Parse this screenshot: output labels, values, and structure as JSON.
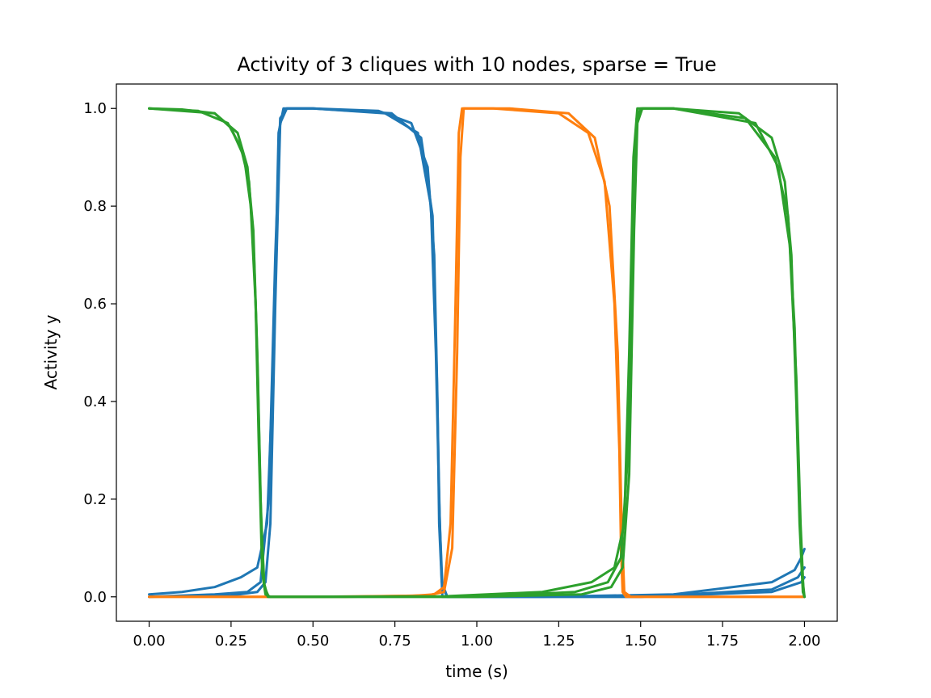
{
  "chart_data": {
    "type": "line",
    "title": "Activity of 3 cliques with 10 nodes, sparse = True",
    "xlabel": "time (s)",
    "ylabel": "Activity y",
    "xlim": [
      -0.1,
      2.1
    ],
    "ylim": [
      -0.05,
      1.05
    ],
    "xticks": [
      0.0,
      0.25,
      0.5,
      0.75,
      1.0,
      1.25,
      1.5,
      1.75,
      2.0
    ],
    "xtick_labels": [
      "0.00",
      "0.25",
      "0.50",
      "0.75",
      "1.00",
      "1.25",
      "1.50",
      "1.75",
      "2.00"
    ],
    "yticks": [
      0.0,
      0.2,
      0.4,
      0.6,
      0.8,
      1.0
    ],
    "ytick_labels": [
      "0.0",
      "0.2",
      "0.4",
      "0.6",
      "0.8",
      "1.0"
    ],
    "grid": false,
    "legend": "none",
    "colors": {
      "blue": "#1f77b4",
      "orange": "#ff7f0e",
      "green": "#2ca02c"
    },
    "series": [
      {
        "color": "#1f77b4",
        "x": [
          0.0,
          0.1,
          0.2,
          0.28,
          0.33,
          0.36,
          0.38,
          0.395,
          0.41,
          0.43,
          0.5,
          0.7,
          0.8,
          0.85,
          0.87,
          0.88,
          0.885,
          0.895,
          0.92,
          1.2,
          1.6,
          1.9,
          1.97,
          1.99,
          2.0
        ],
        "y": [
          0.005,
          0.01,
          0.02,
          0.04,
          0.06,
          0.15,
          0.5,
          0.95,
          1.0,
          1.0,
          1.0,
          0.995,
          0.97,
          0.88,
          0.7,
          0.4,
          0.15,
          0.0,
          0.0,
          0.0,
          0.005,
          0.03,
          0.055,
          0.08,
          0.098
        ]
      },
      {
        "color": "#1f77b4",
        "x": [
          0.0,
          0.2,
          0.3,
          0.34,
          0.365,
          0.385,
          0.4,
          0.42,
          0.5,
          0.72,
          0.82,
          0.86,
          0.875,
          0.885,
          0.893,
          0.91,
          1.5,
          1.9,
          1.98,
          2.0
        ],
        "y": [
          0.0,
          0.005,
          0.01,
          0.03,
          0.2,
          0.7,
          0.98,
          1.0,
          1.0,
          0.99,
          0.95,
          0.8,
          0.5,
          0.2,
          0.03,
          0.0,
          0.0,
          0.015,
          0.04,
          0.06
        ]
      },
      {
        "color": "#1f77b4",
        "x": [
          0.0,
          0.25,
          0.33,
          0.355,
          0.37,
          0.385,
          0.4,
          0.42,
          0.5,
          0.74,
          0.83,
          0.865,
          0.878,
          0.887,
          0.895,
          0.91,
          1.5,
          1.9,
          1.99,
          2.0
        ],
        "y": [
          0.0,
          0.003,
          0.01,
          0.03,
          0.15,
          0.6,
          0.97,
          1.0,
          1.0,
          0.99,
          0.94,
          0.78,
          0.45,
          0.15,
          0.02,
          0.0,
          0.0,
          0.01,
          0.03,
          0.04
        ]
      },
      {
        "color": "#ff7f0e",
        "x": [
          0.0,
          0.5,
          0.8,
          0.87,
          0.9,
          0.92,
          0.935,
          0.945,
          0.955,
          0.97,
          1.05,
          1.25,
          1.34,
          1.39,
          1.42,
          1.435,
          1.44,
          1.445,
          1.455,
          1.5,
          2.0
        ],
        "y": [
          0.0,
          0.0,
          0.002,
          0.005,
          0.02,
          0.15,
          0.6,
          0.95,
          1.0,
          1.0,
          1.0,
          0.99,
          0.95,
          0.85,
          0.6,
          0.3,
          0.1,
          0.01,
          0.0,
          0.0,
          0.0
        ]
      },
      {
        "color": "#ff7f0e",
        "x": [
          0.0,
          0.6,
          0.85,
          0.9,
          0.925,
          0.94,
          0.95,
          0.96,
          0.975,
          1.1,
          1.28,
          1.36,
          1.405,
          1.43,
          1.442,
          1.45,
          1.47,
          2.0
        ],
        "y": [
          0.0,
          0.0,
          0.003,
          0.01,
          0.1,
          0.5,
          0.9,
          1.0,
          1.0,
          1.0,
          0.99,
          0.94,
          0.8,
          0.5,
          0.15,
          0.01,
          0.0,
          0.0
        ]
      },
      {
        "color": "#2ca02c",
        "x": [
          0.0,
          0.1,
          0.2,
          0.25,
          0.29,
          0.31,
          0.325,
          0.335,
          0.345,
          0.355,
          0.37,
          0.45,
          0.9,
          1.2,
          1.35,
          1.42,
          1.45,
          1.465,
          1.478,
          1.49,
          1.51,
          1.6,
          1.8,
          1.9,
          1.94,
          1.96,
          1.975,
          1.985,
          1.995,
          2.0
        ],
        "y": [
          1.0,
          0.998,
          0.99,
          0.96,
          0.9,
          0.8,
          0.6,
          0.3,
          0.05,
          0.005,
          0.0,
          0.0,
          0.001,
          0.01,
          0.03,
          0.06,
          0.15,
          0.5,
          0.9,
          1.0,
          1.0,
          1.0,
          0.99,
          0.94,
          0.85,
          0.7,
          0.4,
          0.15,
          0.01,
          0.0
        ]
      },
      {
        "color": "#2ca02c",
        "x": [
          0.0,
          0.15,
          0.24,
          0.28,
          0.305,
          0.32,
          0.332,
          0.342,
          0.352,
          0.365,
          0.45,
          1.0,
          1.3,
          1.4,
          1.44,
          1.462,
          1.478,
          1.488,
          1.5,
          1.6,
          1.82,
          1.91,
          1.95,
          1.97,
          1.982,
          1.992,
          2.0
        ],
        "y": [
          1.0,
          0.995,
          0.97,
          0.92,
          0.85,
          0.7,
          0.45,
          0.15,
          0.02,
          0.0,
          0.0,
          0.0,
          0.01,
          0.03,
          0.08,
          0.3,
          0.8,
          0.98,
          1.0,
          1.0,
          0.98,
          0.9,
          0.78,
          0.55,
          0.25,
          0.05,
          0.0
        ]
      },
      {
        "color": "#2ca02c",
        "x": [
          0.0,
          0.2,
          0.27,
          0.3,
          0.318,
          0.33,
          0.34,
          0.35,
          0.362,
          0.45,
          1.0,
          1.32,
          1.41,
          1.445,
          1.465,
          1.48,
          1.49,
          1.505,
          1.6,
          1.85,
          1.92,
          1.955,
          1.975,
          1.988,
          1.997,
          2.0
        ],
        "y": [
          1.0,
          0.99,
          0.95,
          0.88,
          0.75,
          0.5,
          0.2,
          0.03,
          0.0,
          0.0,
          0.0,
          0.005,
          0.02,
          0.06,
          0.25,
          0.75,
          0.97,
          1.0,
          1.0,
          0.97,
          0.88,
          0.72,
          0.45,
          0.15,
          0.01,
          0.0
        ]
      }
    ]
  }
}
